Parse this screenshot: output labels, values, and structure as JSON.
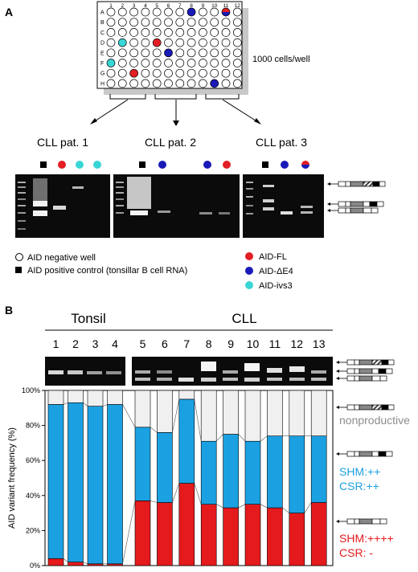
{
  "panel_a": {
    "label": "A",
    "plate": {
      "cols": [
        "1",
        "2",
        "3",
        "4",
        "5",
        "6",
        "7",
        "8",
        "9",
        "10",
        "11",
        "12"
      ],
      "rows": [
        "A",
        "B",
        "C",
        "D",
        "E",
        "F",
        "G",
        "H"
      ],
      "wells_label": "1000 cells/well",
      "colored_wells": [
        {
          "row": "A",
          "col": 8,
          "kind": "dE4"
        },
        {
          "row": "A",
          "col": 11,
          "kind": "split"
        },
        {
          "row": "D",
          "col": 2,
          "kind": "ivs3"
        },
        {
          "row": "D",
          "col": 5,
          "kind": "fl"
        },
        {
          "row": "E",
          "col": 6,
          "kind": "dE4"
        },
        {
          "row": "F",
          "col": 1,
          "kind": "ivs3"
        },
        {
          "row": "G",
          "col": 3,
          "kind": "fl"
        },
        {
          "row": "H",
          "col": 10,
          "kind": "dE4"
        }
      ]
    },
    "patients": [
      {
        "label": "CLL pat. 1",
        "lanes": [
          "pos",
          "fl",
          "ivs3",
          "ivs3"
        ]
      },
      {
        "label": "CLL pat. 2",
        "lanes": [
          "pos",
          "dE4",
          "",
          "",
          "dE4",
          "fl"
        ]
      },
      {
        "label": "CLL pat. 3",
        "lanes": [
          "pos",
          "dE4",
          "split"
        ]
      }
    ],
    "legend": {
      "negative_well": "AID negative well",
      "positive_control": "AID positive control (tonsillar B cell RNA)",
      "fl": "AID-FL",
      "de4": "AID-ΔE4",
      "ivs3": "AID-ivs3"
    },
    "colors": {
      "fl": "#e31e24",
      "dE4": "#1a1ab8",
      "ivs3": "#3ad6d6"
    }
  },
  "panel_b": {
    "label": "B",
    "group_tonsil": "Tonsil",
    "group_cll": "CLL",
    "annotations": {
      "nonproductive": "nonproductive",
      "shm_mid": "SHM:++",
      "csr_mid": "CSR:++",
      "shm_low": "SHM:++++",
      "csr_low": "CSR: -"
    },
    "colors": {
      "gray": "#f0f0f0",
      "blue": "#1ba1e2",
      "red": "#e41a1c",
      "gray_text": "#8c8c8c"
    }
  },
  "chart_data": {
    "type": "bar",
    "stacked": true,
    "categories": [
      "1",
      "2",
      "3",
      "4",
      "5",
      "6",
      "7",
      "8",
      "9",
      "10",
      "11",
      "12",
      "13"
    ],
    "series": [
      {
        "values": [
          4,
          2,
          1,
          1,
          37,
          36,
          47,
          35,
          33,
          35,
          33,
          30,
          36
        ]
      },
      {
        "values": [
          88,
          91,
          90,
          91,
          42,
          40,
          48,
          36,
          42,
          36,
          41,
          44,
          38
        ]
      },
      {
        "values": [
          8,
          7,
          9,
          8,
          21,
          24,
          5,
          29,
          25,
          29,
          26,
          26,
          26
        ]
      }
    ],
    "ylabel": "AID variant frequency (%)",
    "yticks": [
      "0%",
      "20%",
      "40%",
      "60%",
      "80%",
      "100%"
    ],
    "ylim": [
      0,
      100
    ]
  }
}
